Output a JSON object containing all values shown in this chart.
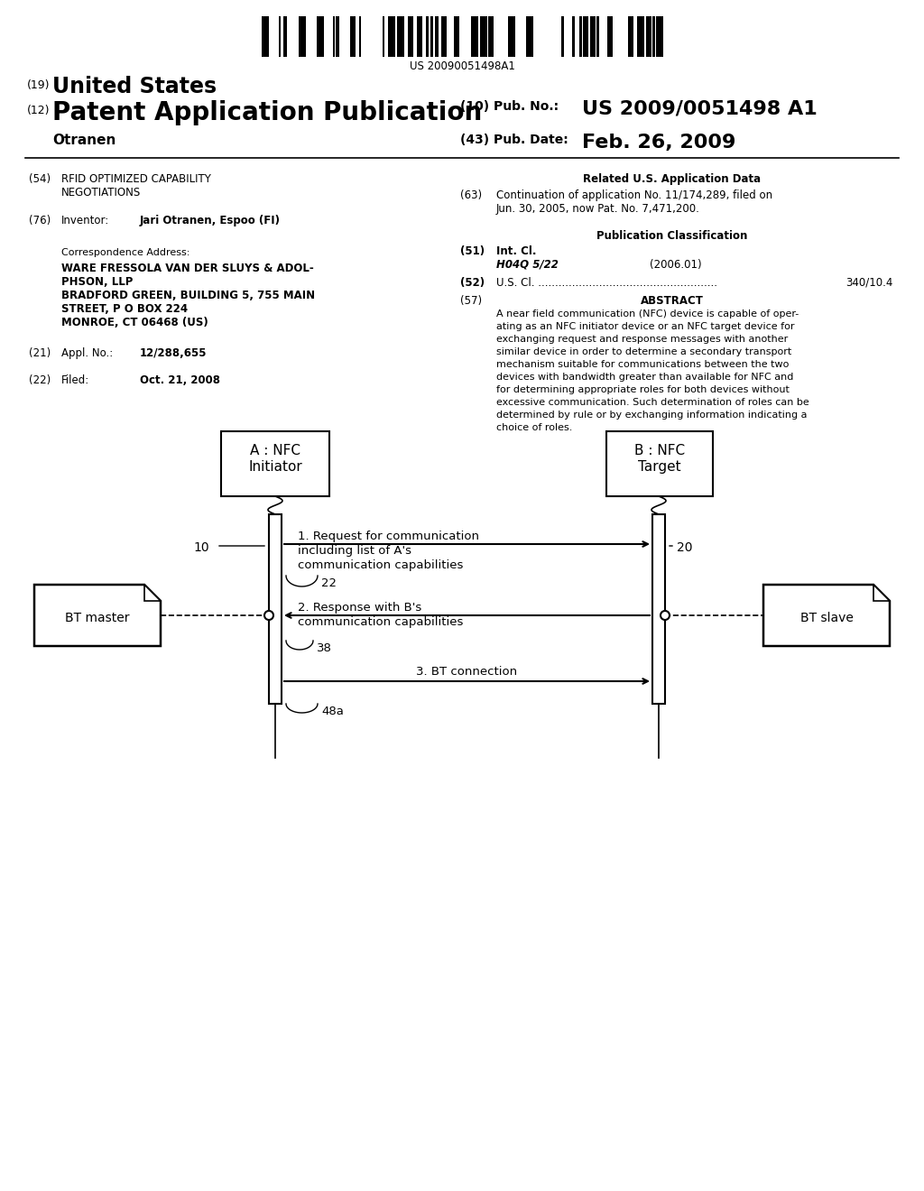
{
  "bg_color": "#ffffff",
  "barcode_text": "US 20090051498A1",
  "header_19": "(19)",
  "header_19_text": "United States",
  "header_12": "(12)",
  "header_12_text": "Patent Application Publication",
  "header_10": "(10) Pub. No.:",
  "header_10_val": "US 2009/0051498 A1",
  "header_inventor": "Otranen",
  "header_43": "(43) Pub. Date:",
  "header_43_val": "Feb. 26, 2009",
  "field_54_label": "(54)",
  "field_54_text": "RFID OPTIMIZED CAPABILITY\nNEGOTIATIONS",
  "field_76_label": "(76)",
  "field_76_text": "Inventor:",
  "field_76_val": "Jari Otranen, Espoo (FI)",
  "corr_addr_label": "Correspondence Address:",
  "corr_addr_lines": [
    "WARE FRESSOLA VAN DER SLUYS & ADOL-",
    "PHSON, LLP",
    "BRADFORD GREEN, BUILDING 5, 755 MAIN",
    "STREET, P O BOX 224",
    "MONROE, CT 06468 (US)"
  ],
  "field_21_label": "(21)",
  "field_21_text": "Appl. No.:",
  "field_21_val": "12/288,655",
  "field_22_label": "(22)",
  "field_22_text": "Filed:",
  "field_22_val": "Oct. 21, 2008",
  "related_title": "Related U.S. Application Data",
  "field_63_label": "(63)",
  "field_63_text": "Continuation of application No. 11/174,289, filed on\nJun. 30, 2005, now Pat. No. 7,471,200.",
  "pub_class_title": "Publication Classification",
  "field_51_label": "(51)",
  "field_51_text": "Int. Cl.",
  "field_51_class": "H04Q 5/22",
  "field_51_year": "(2006.01)",
  "field_52_label": "(52)",
  "field_52_text": "U.S. Cl. .....................................................",
  "field_52_val": "340/10.4",
  "field_57_label": "(57)",
  "field_57_title": "ABSTRACT",
  "field_57_text": "A near field communication (NFC) device is capable of oper-\nating as an NFC initiator device or an NFC target device for\nexchanging request and response messages with another\nsimilar device in order to determine a secondary transport\nmechanism suitable for communications between the two\ndevices with bandwidth greater than available for NFC and\nfor determining appropriate roles for both devices without\nexcessive communication. Such determination of roles can be\ndetermined by rule or by exchanging information indicating a\nchoice of roles.",
  "diag": {
    "A_box_label_1": "A : NFC",
    "A_box_label_2": "Initiator",
    "B_box_label_1": "B : NFC",
    "B_box_label_2": "Target",
    "BT_master_label": "BT master",
    "BT_slave_label": "BT slave",
    "label_10": "10",
    "label_20": "20",
    "label_22": "22",
    "label_38": "38",
    "label_48a": "48a",
    "msg1_line1": "1. Request for communication",
    "msg1_line2": "including list of A's",
    "msg1_line3": "communication capabilities",
    "msg2_line1": "2. Response with B's",
    "msg2_line2": "communication capabilities",
    "msg3_text": "3. BT connection"
  }
}
